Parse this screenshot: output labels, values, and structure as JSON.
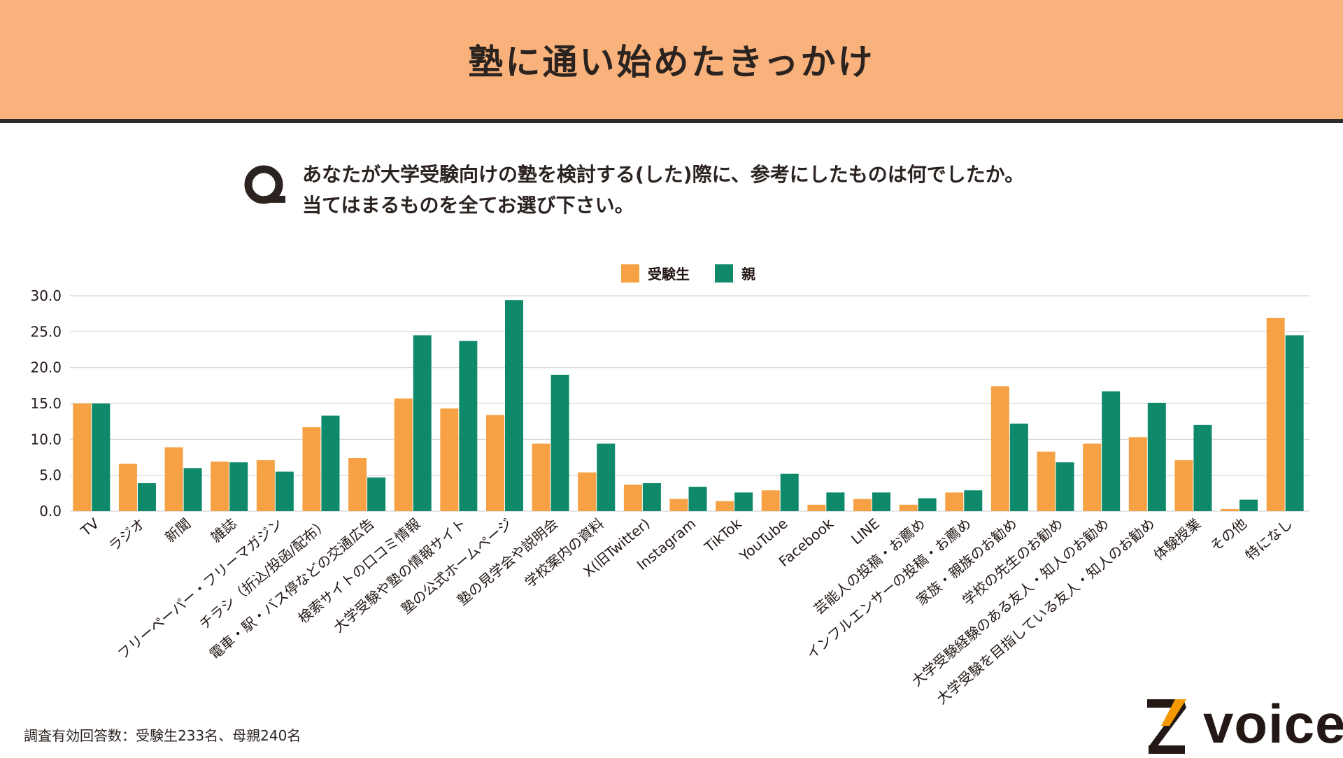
{
  "header": {
    "title": "塾に通い始めたきっかけ"
  },
  "question": {
    "mark": "Q",
    "line1": "あなたが大学受験向けの塾を検討する(した)際に、参考にしたものは何でしたか。",
    "line2": "当てはまるものを全てお選び下さい。"
  },
  "colors": {
    "student": "#f6a244",
    "parent": "#0e8a6b",
    "header_bg": "#f9b27b",
    "logo_accent": "#f39800"
  },
  "chart_data": {
    "type": "bar",
    "title": "",
    "xlabel": "",
    "ylabel": "",
    "ylim": [
      0,
      30
    ],
    "yticks": [
      "0.0",
      "5.0",
      "10.0",
      "15.0",
      "20.0",
      "25.0",
      "30.0"
    ],
    "grid": true,
    "legend_position": "top-center",
    "categories": [
      "TV",
      "ラジオ",
      "新聞",
      "雑誌",
      "フリーペーパー・フリーマガジン",
      "チラシ（折込/投函/配布）",
      "電車・駅・バス停などの交通広告",
      "検索サイトの口コミ情報",
      "大学受験や塾の情報サイト",
      "塾の公式ホームページ",
      "塾の見学会や説明会",
      "学校案内の資料",
      "X(旧Twitter)",
      "Instagram",
      "TikTok",
      "YouTube",
      "Facebook",
      "LINE",
      "芸能人の投稿・お薦め",
      "インフルエンサーの投稿・お薦め",
      "家族・親族のお勧め",
      "学校の先生のお勧め",
      "大学受験経験のある友人・知人のお勧め",
      "大学受験を目指している友人・知人のお勧め",
      "体験授業",
      "その他",
      "特になし"
    ],
    "series": [
      {
        "name": "受験生",
        "values": [
          15.0,
          6.6,
          8.9,
          6.9,
          7.1,
          11.7,
          7.4,
          15.7,
          14.3,
          13.4,
          9.4,
          5.4,
          3.7,
          1.7,
          1.4,
          2.9,
          0.9,
          1.7,
          0.9,
          2.6,
          17.4,
          8.3,
          9.4,
          10.3,
          7.1,
          0.3,
          26.9
        ]
      },
      {
        "name": "親",
        "values": [
          15.0,
          3.9,
          6.0,
          6.8,
          5.5,
          13.3,
          4.7,
          24.5,
          23.7,
          29.4,
          19.0,
          9.4,
          3.9,
          3.4,
          2.6,
          5.2,
          2.6,
          2.6,
          1.8,
          2.9,
          12.2,
          6.8,
          16.7,
          15.1,
          12.0,
          1.6,
          24.5
        ]
      }
    ]
  },
  "footnote": "調査有効回答数：受験生233名、母親240名",
  "logo": {
    "text": "voice",
    "mark": "Z"
  }
}
